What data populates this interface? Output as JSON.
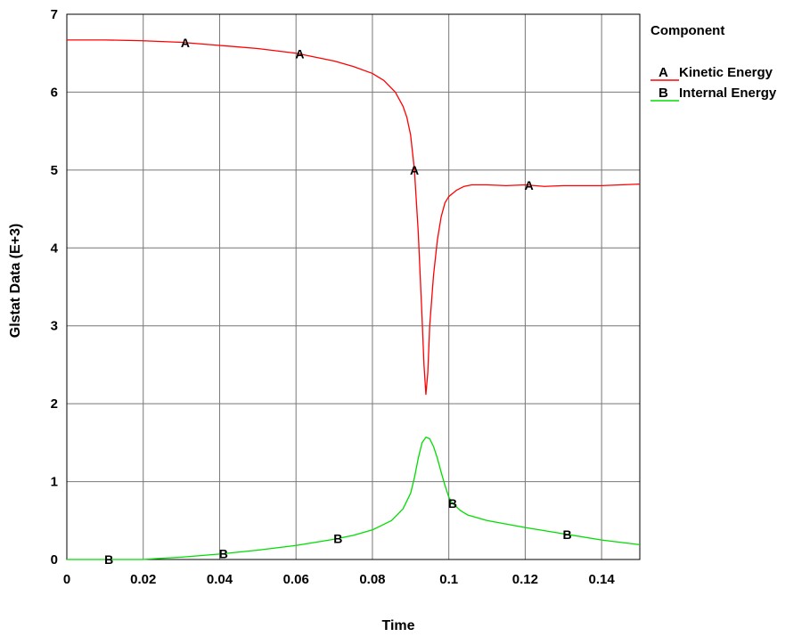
{
  "chart_data": {
    "type": "line",
    "title": "",
    "xlabel": "Time",
    "ylabel": "Glstat Data (E+3)",
    "xlim": [
      0,
      0.15
    ],
    "ylim": [
      0,
      7
    ],
    "xticks": [
      "0",
      "0.02",
      "0.04",
      "0.06",
      "0.08",
      "0.1",
      "0.12",
      "0.14"
    ],
    "yticks": [
      "0",
      "1",
      "2",
      "3",
      "4",
      "5",
      "6",
      "7"
    ],
    "grid": true,
    "legend": {
      "title": "Component",
      "placement": "right",
      "entries": [
        {
          "key": "A",
          "label": "Kinetic Energy"
        },
        {
          "key": "B",
          "label": "Internal Energy"
        }
      ]
    },
    "series": [
      {
        "name": "Kinetic Energy",
        "key": "A",
        "color": "#ff0000",
        "markers_x": [
          0.031,
          0.061,
          0.091,
          0.121
        ],
        "x": [
          0,
          0.01,
          0.02,
          0.03,
          0.04,
          0.05,
          0.06,
          0.065,
          0.07,
          0.075,
          0.08,
          0.083,
          0.086,
          0.088,
          0.089,
          0.09,
          0.091,
          0.092,
          0.093,
          0.0935,
          0.094,
          0.0945,
          0.095,
          0.096,
          0.097,
          0.098,
          0.099,
          0.1,
          0.102,
          0.104,
          0.106,
          0.11,
          0.115,
          0.12,
          0.125,
          0.13,
          0.14,
          0.15
        ],
        "values": [
          6.67,
          6.67,
          6.66,
          6.64,
          6.6,
          6.56,
          6.5,
          6.45,
          6.4,
          6.33,
          6.24,
          6.15,
          6.0,
          5.82,
          5.68,
          5.45,
          5.0,
          4.2,
          3.1,
          2.5,
          2.12,
          2.4,
          3.0,
          3.65,
          4.1,
          4.4,
          4.58,
          4.66,
          4.74,
          4.79,
          4.81,
          4.81,
          4.8,
          4.81,
          4.79,
          4.8,
          4.8,
          4.82
        ]
      },
      {
        "name": "Internal Energy",
        "key": "B",
        "color": "#00dd00",
        "markers_x": [
          0.011,
          0.041,
          0.071,
          0.101,
          0.131
        ],
        "x": [
          0,
          0.01,
          0.02,
          0.023,
          0.03,
          0.04,
          0.05,
          0.06,
          0.07,
          0.075,
          0.08,
          0.085,
          0.088,
          0.09,
          0.091,
          0.092,
          0.093,
          0.094,
          0.095,
          0.096,
          0.097,
          0.098,
          0.099,
          0.1,
          0.101,
          0.103,
          0.105,
          0.11,
          0.12,
          0.13,
          0.14,
          0.15
        ],
        "values": [
          0,
          0,
          0,
          0.01,
          0.03,
          0.07,
          0.12,
          0.18,
          0.26,
          0.31,
          0.38,
          0.5,
          0.65,
          0.85,
          1.05,
          1.3,
          1.5,
          1.57,
          1.55,
          1.45,
          1.3,
          1.12,
          0.95,
          0.8,
          0.72,
          0.63,
          0.57,
          0.5,
          0.41,
          0.33,
          0.25,
          0.19
        ]
      }
    ]
  }
}
